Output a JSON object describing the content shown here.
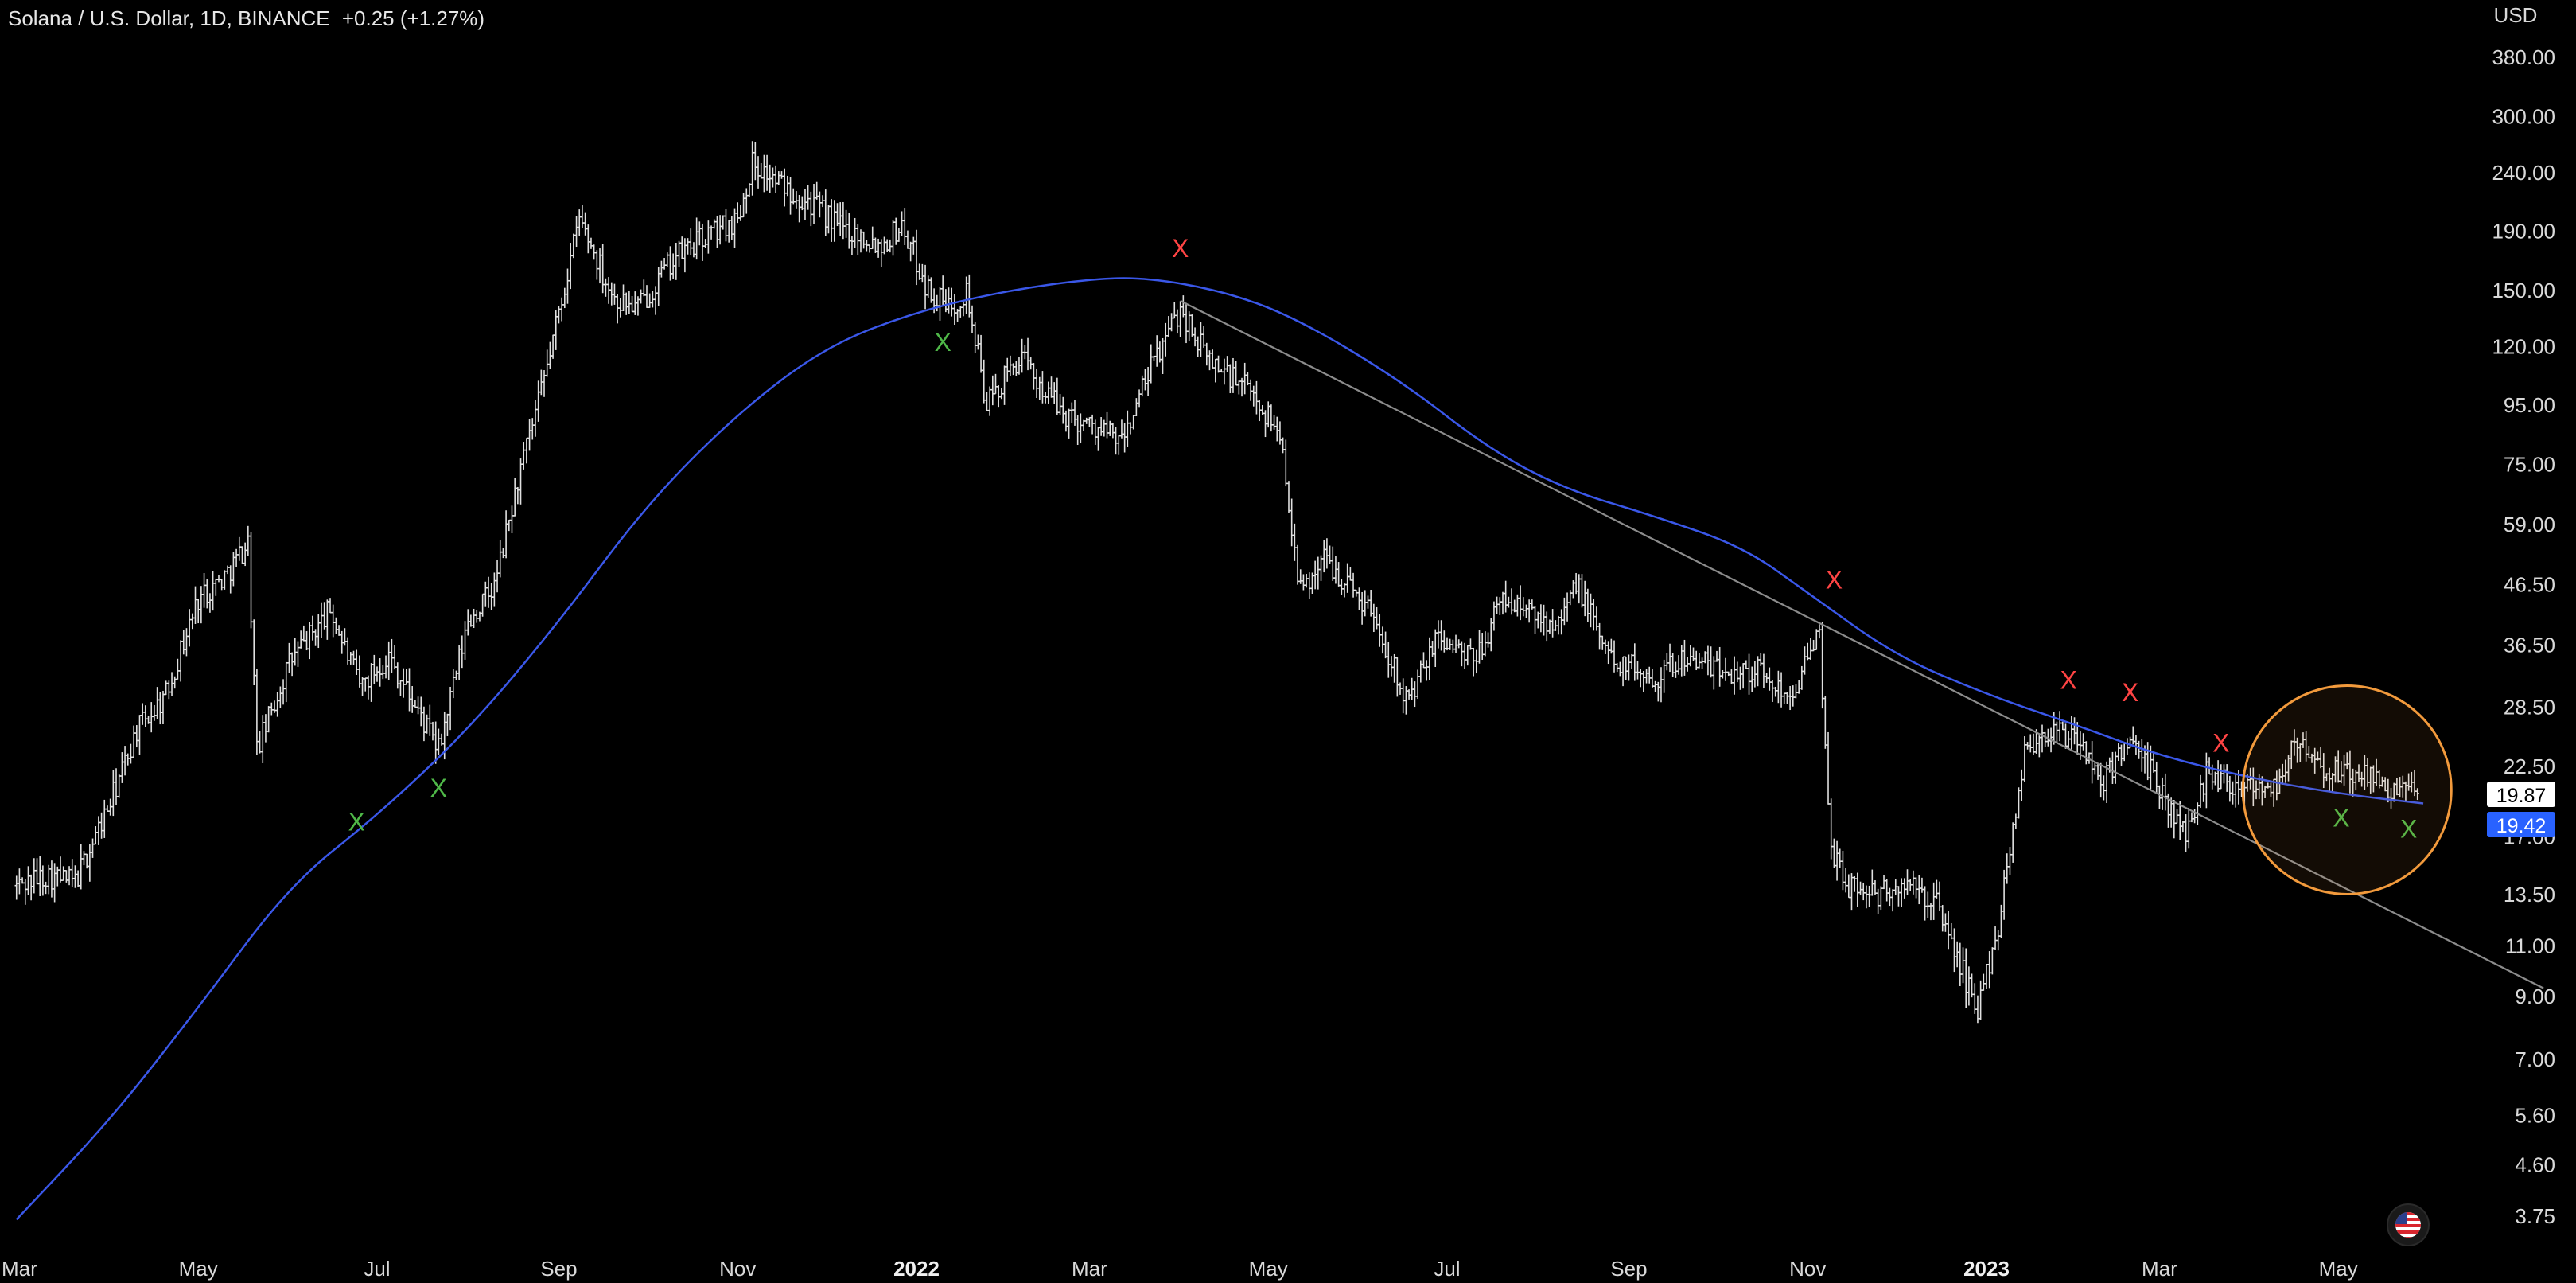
{
  "header": {
    "symbol": "Solana / U.S. Dollar, 1D, BINANCE",
    "change": "+0.25 (+1.27%)"
  },
  "chart_data": {
    "type": "candlestick",
    "price_axis": {
      "unit": "USD",
      "scale": "log",
      "ticks": [
        "380.00",
        "300.00",
        "240.00",
        "190.00",
        "150.00",
        "120.00",
        "95.00",
        "75.00",
        "59.00",
        "46.50",
        "36.50",
        "28.50",
        "22.50",
        "17.00",
        "13.50",
        "11.00",
        "9.00",
        "7.00",
        "5.60",
        "4.60",
        "3.75"
      ],
      "last_price": "19.87",
      "ma_value": "19.42",
      "ylim": [
        3.5,
        430
      ]
    },
    "time_axis": {
      "labels": [
        {
          "text": "Mar",
          "date": "2021-03-01",
          "bold": false
        },
        {
          "text": "May",
          "date": "2021-05-01",
          "bold": false
        },
        {
          "text": "Jul",
          "date": "2021-07-01",
          "bold": false
        },
        {
          "text": "Sep",
          "date": "2021-09-01",
          "bold": false
        },
        {
          "text": "Nov",
          "date": "2021-11-01",
          "bold": false
        },
        {
          "text": "2022",
          "date": "2022-01-01",
          "bold": true
        },
        {
          "text": "Mar",
          "date": "2022-03-01",
          "bold": false
        },
        {
          "text": "May",
          "date": "2022-05-01",
          "bold": false
        },
        {
          "text": "Jul",
          "date": "2022-07-01",
          "bold": false
        },
        {
          "text": "Sep",
          "date": "2022-09-01",
          "bold": false
        },
        {
          "text": "Nov",
          "date": "2022-11-01",
          "bold": false
        },
        {
          "text": "2023",
          "date": "2023-01-01",
          "bold": true
        },
        {
          "text": "Mar",
          "date": "2023-03-01",
          "bold": false
        },
        {
          "text": "May",
          "date": "2023-05-01",
          "bold": false
        }
      ],
      "xlim": [
        "2021-02-28",
        "2023-07-14"
      ]
    },
    "price_path": [
      [
        "2021-02-28",
        14
      ],
      [
        "2021-03-10",
        14.6
      ],
      [
        "2021-03-20",
        14.2
      ],
      [
        "2021-04-01",
        19.5
      ],
      [
        "2021-04-10",
        26
      ],
      [
        "2021-04-20",
        30
      ],
      [
        "2021-05-01",
        44
      ],
      [
        "2021-05-10",
        48
      ],
      [
        "2021-05-18",
        55
      ],
      [
        "2021-05-21",
        24
      ],
      [
        "2021-06-01",
        34
      ],
      [
        "2021-06-15",
        42
      ],
      [
        "2021-06-25",
        31
      ],
      [
        "2021-07-05",
        35
      ],
      [
        "2021-07-15",
        28
      ],
      [
        "2021-07-22",
        24
      ],
      [
        "2021-08-01",
        40
      ],
      [
        "2021-08-10",
        46
      ],
      [
        "2021-08-18",
        70
      ],
      [
        "2021-08-26",
        100
      ],
      [
        "2021-09-08",
        200
      ],
      [
        "2021-09-20",
        145
      ],
      [
        "2021-09-28",
        140
      ],
      [
        "2021-10-10",
        170
      ],
      [
        "2021-10-20",
        185
      ],
      [
        "2021-11-01",
        200
      ],
      [
        "2021-11-06",
        250
      ],
      [
        "2021-11-15",
        230
      ],
      [
        "2021-11-25",
        215
      ],
      [
        "2021-12-05",
        195
      ],
      [
        "2021-12-20",
        180
      ],
      [
        "2021-12-27",
        195
      ],
      [
        "2022-01-05",
        150
      ],
      [
        "2022-01-12",
        140
      ],
      [
        "2022-01-18",
        150
      ],
      [
        "2022-01-25",
        95
      ],
      [
        "2022-02-05",
        115
      ],
      [
        "2022-02-20",
        92
      ],
      [
        "2022-03-05",
        86
      ],
      [
        "2022-03-12",
        82
      ],
      [
        "2022-03-22",
        110
      ],
      [
        "2022-04-01",
        140
      ],
      [
        "2022-04-10",
        115
      ],
      [
        "2022-04-25",
        100
      ],
      [
        "2022-05-05",
        85
      ],
      [
        "2022-05-12",
        45
      ],
      [
        "2022-05-20",
        52
      ],
      [
        "2022-06-05",
        42
      ],
      [
        "2022-06-18",
        29
      ],
      [
        "2022-06-28",
        38
      ],
      [
        "2022-07-10",
        34
      ],
      [
        "2022-07-20",
        44
      ],
      [
        "2022-08-05",
        40
      ],
      [
        "2022-08-15",
        46
      ],
      [
        "2022-08-25",
        35
      ],
      [
        "2022-09-10",
        32
      ],
      [
        "2022-09-20",
        35
      ],
      [
        "2022-10-01",
        33
      ],
      [
        "2022-10-15",
        33
      ],
      [
        "2022-10-25",
        30
      ],
      [
        "2022-11-01",
        34
      ],
      [
        "2022-11-05",
        38
      ],
      [
        "2022-11-09",
        16
      ],
      [
        "2022-11-15",
        14
      ],
      [
        "2022-11-25",
        13.5
      ],
      [
        "2022-12-05",
        14
      ],
      [
        "2022-12-15",
        13
      ],
      [
        "2022-12-29",
        8.5
      ],
      [
        "2023-01-05",
        12
      ],
      [
        "2023-01-14",
        24
      ],
      [
        "2023-01-22",
        26
      ],
      [
        "2023-02-01",
        25
      ],
      [
        "2023-02-10",
        21
      ],
      [
        "2023-02-17",
        25
      ],
      [
        "2023-02-26",
        22
      ],
      [
        "2023-03-10",
        17
      ],
      [
        "2023-03-17",
        22
      ],
      [
        "2023-03-28",
        21
      ],
      [
        "2023-04-10",
        21
      ],
      [
        "2023-04-17",
        25
      ],
      [
        "2023-04-25",
        22
      ],
      [
        "2023-05-05",
        22
      ],
      [
        "2023-05-15",
        21
      ],
      [
        "2023-05-28",
        20
      ]
    ],
    "ma_path": [
      [
        "2021-02-28",
        3.7
      ],
      [
        "2021-04-01",
        5.5
      ],
      [
        "2021-05-01",
        8.6
      ],
      [
        "2021-06-01",
        14
      ],
      [
        "2021-07-01",
        18.5
      ],
      [
        "2021-08-01",
        26
      ],
      [
        "2021-09-01",
        40
      ],
      [
        "2021-10-01",
        64
      ],
      [
        "2021-11-01",
        92
      ],
      [
        "2021-12-01",
        120
      ],
      [
        "2022-01-01",
        138
      ],
      [
        "2022-02-01",
        150
      ],
      [
        "2022-03-01",
        157
      ],
      [
        "2022-03-20",
        158
      ],
      [
        "2022-04-15",
        150
      ],
      [
        "2022-05-10",
        135
      ],
      [
        "2022-06-15",
        105
      ],
      [
        "2022-07-15",
        80
      ],
      [
        "2022-08-10",
        68
      ],
      [
        "2022-09-10",
        61
      ],
      [
        "2022-10-10",
        54
      ],
      [
        "2022-11-01",
        45
      ],
      [
        "2022-12-01",
        35
      ],
      [
        "2023-01-01",
        30
      ],
      [
        "2023-02-01",
        26.5
      ],
      [
        "2023-03-01",
        23.5
      ],
      [
        "2023-04-01",
        21.5
      ],
      [
        "2023-05-01",
        20.2
      ],
      [
        "2023-05-30",
        19.42
      ]
    ],
    "trendline": {
      "from": [
        "2022-04-01",
        144
      ],
      "to": [
        "2023-07-10",
        9.3
      ]
    },
    "markers": [
      {
        "label": "X",
        "color": "#4fb848",
        "date": "2021-06-24",
        "price": 17.9
      },
      {
        "label": "X",
        "color": "#4fb848",
        "date": "2021-07-22",
        "price": 20.5
      },
      {
        "label": "X",
        "color": "#4fb848",
        "date": "2022-01-10",
        "price": 121
      },
      {
        "label": "X",
        "color": "#ff4444",
        "date": "2022-04-01",
        "price": 176
      },
      {
        "label": "X",
        "color": "#ff4444",
        "date": "2022-11-10",
        "price": 47
      },
      {
        "label": "X",
        "color": "#ff4444",
        "date": "2023-01-29",
        "price": 31.5
      },
      {
        "label": "X",
        "color": "#ff4444",
        "date": "2023-02-19",
        "price": 30
      },
      {
        "label": "X",
        "color": "#ff4444",
        "date": "2023-03-22",
        "price": 24.5
      },
      {
        "label": "X",
        "color": "#4fb848",
        "date": "2023-05-02",
        "price": 18.2
      },
      {
        "label": "X",
        "color": "#4fb848",
        "date": "2023-05-25",
        "price": 17.4
      }
    ],
    "highlight_circle": {
      "date": "2023-05-04",
      "price": 20.5,
      "color": "#f29a3c"
    },
    "colors": {
      "background": "#000000",
      "candles": "#e0e0e0",
      "ma_line": "#3a57e8",
      "trendline": "#8c8c8c",
      "last_price_bg": "#ffffff",
      "ma_label_bg": "#2962ff"
    }
  }
}
